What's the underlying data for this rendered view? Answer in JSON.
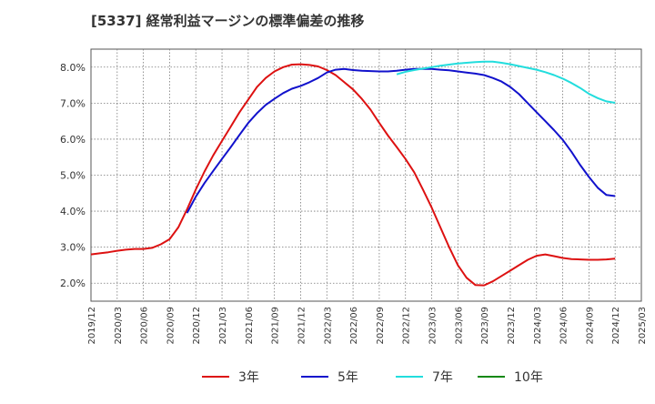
{
  "chart_data": {
    "type": "line",
    "title": "[5337]  経常利益マージンの標準偏差の推移",
    "xlabel": "",
    "ylabel": "",
    "ylim": [
      1.5,
      8.5
    ],
    "yticks": [
      2.0,
      3.0,
      4.0,
      5.0,
      6.0,
      7.0,
      8.0
    ],
    "ytick_labels": [
      "2.0%",
      "3.0%",
      "4.0%",
      "5.0%",
      "6.0%",
      "7.0%",
      "8.0%"
    ],
    "x_ticks": [
      "2019/12",
      "2020/03",
      "2020/06",
      "2020/09",
      "2020/12",
      "2021/03",
      "2021/06",
      "2021/09",
      "2021/12",
      "2022/03",
      "2022/06",
      "2022/09",
      "2022/12",
      "2023/03",
      "2023/06",
      "2023/09",
      "2023/12",
      "2024/03",
      "2024/06",
      "2024/09",
      "2024/12",
      "2025/03"
    ],
    "grid": true,
    "legend_position": "bottom",
    "colors": {
      "3年": "#dd1111",
      "5年": "#1111cc",
      "7年": "#22dddd",
      "10年": "#118811"
    },
    "series": [
      {
        "name": "3年",
        "x": [
          "2019/12",
          "2020/01",
          "2020/02",
          "2020/03",
          "2020/04",
          "2020/05",
          "2020/06",
          "2020/07",
          "2020/08",
          "2020/09",
          "2020/10",
          "2020/11",
          "2020/12",
          "2021/01",
          "2021/02",
          "2021/03",
          "2021/04",
          "2021/05",
          "2021/06",
          "2021/07",
          "2021/08",
          "2021/09",
          "2021/10",
          "2021/11",
          "2021/12",
          "2022/01",
          "2022/02",
          "2022/03",
          "2022/04",
          "2022/05",
          "2022/06",
          "2022/07",
          "2022/08",
          "2022/09",
          "2022/10",
          "2022/11",
          "2022/12",
          "2023/01",
          "2023/02",
          "2023/03",
          "2023/04",
          "2023/05",
          "2023/06",
          "2023/07",
          "2023/08",
          "2023/09",
          "2023/10",
          "2023/11",
          "2023/12",
          "2024/01",
          "2024/02",
          "2024/03",
          "2024/04",
          "2024/05",
          "2024/06",
          "2024/07",
          "2024/08",
          "2024/09",
          "2024/10",
          "2024/11",
          "2024/12"
        ],
        "values": [
          2.8,
          2.83,
          2.86,
          2.9,
          2.93,
          2.95,
          2.95,
          2.98,
          3.08,
          3.22,
          3.55,
          4.05,
          4.6,
          5.1,
          5.55,
          5.95,
          6.35,
          6.75,
          7.1,
          7.45,
          7.7,
          7.88,
          8.0,
          8.07,
          8.08,
          8.06,
          8.02,
          7.92,
          7.78,
          7.58,
          7.38,
          7.12,
          6.82,
          6.45,
          6.1,
          5.78,
          5.45,
          5.08,
          4.6,
          4.1,
          3.55,
          3.0,
          2.5,
          2.15,
          1.95,
          1.94,
          2.05,
          2.2,
          2.35,
          2.5,
          2.65,
          2.76,
          2.8,
          2.75,
          2.7,
          2.67,
          2.66,
          2.65,
          2.65,
          2.66,
          2.68
        ]
      },
      {
        "name": "5年",
        "x": [
          "2020/11",
          "2020/12",
          "2021/01",
          "2021/02",
          "2021/03",
          "2021/04",
          "2021/05",
          "2021/06",
          "2021/07",
          "2021/08",
          "2021/09",
          "2021/10",
          "2021/11",
          "2021/12",
          "2022/01",
          "2022/02",
          "2022/03",
          "2022/04",
          "2022/05",
          "2022/06",
          "2022/07",
          "2022/08",
          "2022/09",
          "2022/10",
          "2022/11",
          "2022/12",
          "2023/01",
          "2023/02",
          "2023/03",
          "2023/04",
          "2023/05",
          "2023/06",
          "2023/07",
          "2023/08",
          "2023/09",
          "2023/10",
          "2023/11",
          "2023/12",
          "2024/01",
          "2024/02",
          "2024/03",
          "2024/04",
          "2024/05",
          "2024/06",
          "2024/07",
          "2024/08",
          "2024/09",
          "2024/10",
          "2024/11",
          "2024/12"
        ],
        "values": [
          3.95,
          4.4,
          4.78,
          5.12,
          5.45,
          5.78,
          6.12,
          6.45,
          6.72,
          6.95,
          7.12,
          7.28,
          7.4,
          7.48,
          7.58,
          7.7,
          7.85,
          7.93,
          7.95,
          7.92,
          7.9,
          7.89,
          7.88,
          7.88,
          7.9,
          7.93,
          7.95,
          7.95,
          7.95,
          7.93,
          7.91,
          7.88,
          7.85,
          7.82,
          7.78,
          7.7,
          7.6,
          7.45,
          7.25,
          7.0,
          6.75,
          6.5,
          6.25,
          5.98,
          5.65,
          5.28,
          4.95,
          4.65,
          4.45,
          4.42
        ]
      },
      {
        "name": "7年",
        "x": [
          "2022/11",
          "2022/12",
          "2023/01",
          "2023/02",
          "2023/03",
          "2023/04",
          "2023/05",
          "2023/06",
          "2023/07",
          "2023/08",
          "2023/09",
          "2023/10",
          "2023/11",
          "2023/12",
          "2024/01",
          "2024/02",
          "2024/03",
          "2024/04",
          "2024/05",
          "2024/06",
          "2024/07",
          "2024/08",
          "2024/09",
          "2024/10",
          "2024/11",
          "2024/12"
        ],
        "values": [
          7.8,
          7.87,
          7.92,
          7.96,
          8.0,
          8.04,
          8.07,
          8.1,
          8.12,
          8.14,
          8.15,
          8.15,
          8.12,
          8.08,
          8.03,
          7.98,
          7.93,
          7.86,
          7.78,
          7.68,
          7.56,
          7.42,
          7.26,
          7.14,
          7.05,
          7.01
        ]
      },
      {
        "name": "10年",
        "x": [],
        "values": []
      }
    ]
  }
}
